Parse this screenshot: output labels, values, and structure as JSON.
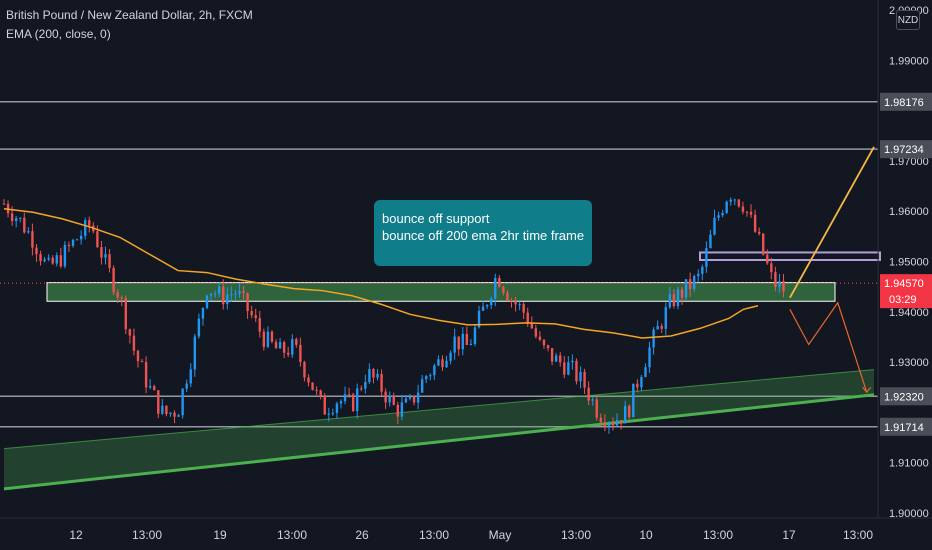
{
  "header": {
    "title": "British Pound / New Zealand Dollar, 2h, FXCM",
    "indicator": "EMA (200, close, 0)"
  },
  "currency_badge": "NZD",
  "annotation": {
    "line1": "bounce off support",
    "line2": "bounce off 200 ema 2hr time frame"
  },
  "colors": {
    "background": "#131722",
    "candle_up": "#2196f3",
    "candle_down": "#ef5350",
    "ema": "#f5a623",
    "support_zone": "#3a7d44",
    "trend_channel": "#4caf50",
    "callout": "#0f7d8a",
    "projection_up": "#f5b942",
    "projection_down": "#e8642a",
    "resistance_box": "#b39ddb"
  },
  "chart_data": {
    "type": "candlestick",
    "title": "British Pound / New Zealand Dollar, 2h, FXCM",
    "x_ticks": [
      "12",
      "13:00",
      "19",
      "13:00",
      "26",
      "13:00",
      "May",
      "13:00",
      "10",
      "13:00",
      "17",
      "13:00"
    ],
    "y_ticks": [
      "1.90000",
      "1.91000",
      "1.93000",
      "1.94000",
      "1.95000",
      "1.96000",
      "1.97000",
      "1.99000",
      "2.00000"
    ],
    "ylim": [
      1.899,
      2.002
    ],
    "horizontal_levels": [
      {
        "label": "1.98176",
        "value": 1.98176
      },
      {
        "label": "1.97234",
        "value": 1.97234
      },
      {
        "label": "1.92320",
        "value": 1.9232
      },
      {
        "label": "1.91714",
        "value": 1.91714
      }
    ],
    "current_price": {
      "label": "1.94570",
      "value": 1.9457,
      "countdown": "03:29"
    },
    "support_zone": {
      "low": 1.9421,
      "high": 1.9458
    },
    "resistance_box": {
      "low": 1.9503,
      "high": 1.9518
    },
    "trend_channel": {
      "upper": [
        [
          0,
          1.9128
        ],
        [
          60,
          1.9285
        ]
      ],
      "lower": [
        [
          0,
          1.9048
        ],
        [
          60,
          1.9235
        ]
      ]
    },
    "ema_200": [
      [
        0,
        1.9605
      ],
      [
        2,
        1.9598
      ],
      [
        4,
        1.9585
      ],
      [
        6,
        1.9568
      ],
      [
        8,
        1.9548
      ],
      [
        10,
        1.9515
      ],
      [
        12,
        1.9482
      ],
      [
        14,
        1.9478
      ],
      [
        16,
        1.9465
      ],
      [
        18,
        1.9455
      ],
      [
        20,
        1.9446
      ],
      [
        22,
        1.9442
      ],
      [
        24,
        1.9432
      ],
      [
        26,
        1.9415
      ],
      [
        28,
        1.9395
      ],
      [
        30,
        1.9383
      ],
      [
        32,
        1.9374
      ],
      [
        34,
        1.9375
      ],
      [
        36,
        1.9378
      ],
      [
        38,
        1.9376
      ],
      [
        40,
        1.9365
      ],
      [
        42,
        1.9358
      ],
      [
        44,
        1.9348
      ],
      [
        46,
        1.9352
      ],
      [
        48,
        1.9367
      ],
      [
        50,
        1.9387
      ],
      [
        51,
        1.9405
      ],
      [
        52,
        1.9412
      ]
    ],
    "price": [
      [
        0,
        1.9615
      ],
      [
        1,
        1.9585
      ],
      [
        2,
        1.9545
      ],
      [
        3,
        1.9485
      ],
      [
        4,
        1.951
      ],
      [
        5,
        1.9545
      ],
      [
        6,
        1.9575
      ],
      [
        7,
        1.9495
      ],
      [
        8,
        1.943
      ],
      [
        9,
        1.932
      ],
      [
        10,
        1.925
      ],
      [
        11,
        1.9195
      ],
      [
        12,
        1.9205
      ],
      [
        13,
        1.932
      ],
      [
        14,
        1.945
      ],
      [
        15,
        1.943
      ],
      [
        16,
        1.944
      ],
      [
        17,
        1.9395
      ],
      [
        18,
        1.9345
      ],
      [
        19,
        1.932
      ],
      [
        20,
        1.933
      ],
      [
        21,
        1.927
      ],
      [
        22,
        1.9205
      ],
      [
        23,
        1.9225
      ],
      [
        24,
        1.9215
      ],
      [
        25,
        1.928
      ],
      [
        26,
        1.925
      ],
      [
        27,
        1.9205
      ],
      [
        28,
        1.9215
      ],
      [
        29,
        1.927
      ],
      [
        30,
        1.93
      ],
      [
        31,
        1.9345
      ],
      [
        32,
        1.933
      ],
      [
        33,
        1.94
      ],
      [
        34,
        1.9475
      ],
      [
        35,
        1.9425
      ],
      [
        36,
        1.9395
      ],
      [
        37,
        1.933
      ],
      [
        38,
        1.9305
      ],
      [
        39,
        1.929
      ],
      [
        40,
        1.9255
      ],
      [
        41,
        1.92
      ],
      [
        42,
        1.9185
      ],
      [
        43,
        1.92
      ],
      [
        44,
        1.929
      ],
      [
        45,
        1.936
      ],
      [
        46,
        1.942
      ],
      [
        47,
        1.9445
      ],
      [
        48,
        1.947
      ],
      [
        49,
        1.9575
      ],
      [
        50,
        1.964
      ],
      [
        51,
        1.9615
      ],
      [
        52,
        1.9545
      ],
      [
        53,
        1.946
      ],
      [
        54,
        1.944
      ]
    ],
    "projections": [
      {
        "name": "up",
        "points": [
          [
            54.2,
            1.9428
          ],
          [
            60,
            1.9728
          ]
        ]
      },
      {
        "name": "down",
        "points": [
          [
            54.2,
            1.9405
          ],
          [
            55.5,
            1.9335
          ],
          [
            57.5,
            1.9418
          ],
          [
            59.5,
            1.924
          ]
        ]
      }
    ]
  }
}
